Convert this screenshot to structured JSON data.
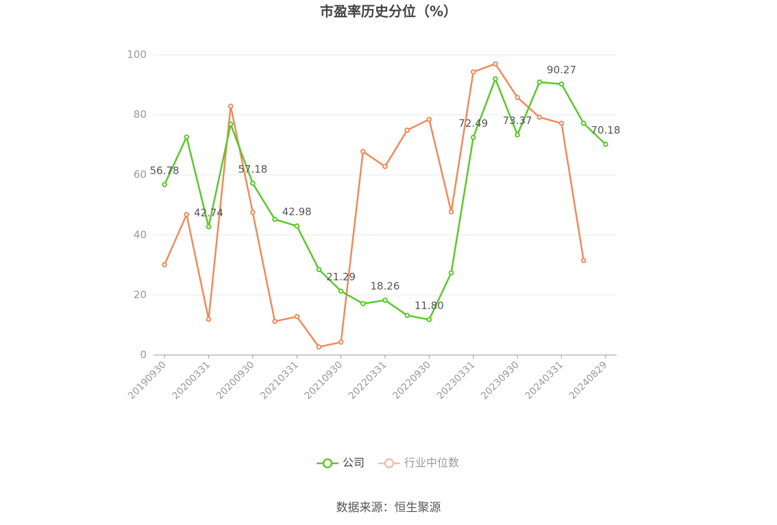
{
  "chart_data": {
    "type": "line",
    "title": "市盈率历史分位（%）",
    "source": "数据来源：恒生聚源",
    "categories": [
      "20190930",
      null,
      "20200331",
      null,
      "20200930",
      null,
      "20210331",
      null,
      "20210930",
      null,
      "20220331",
      null,
      "20220930",
      null,
      "20230331",
      null,
      "20230930",
      null,
      "20240331",
      null,
      "20240829"
    ],
    "series": [
      {
        "name": "公司",
        "color": "#5ac72a",
        "values": [
          56.78,
          72.6,
          42.74,
          76.9,
          57.18,
          45.2,
          42.98,
          28.5,
          21.29,
          17.1,
          18.26,
          13.2,
          11.8,
          27.4,
          72.49,
          92.0,
          73.37,
          90.9,
          90.27,
          77.2,
          70.18
        ],
        "value_labels": [
          "56.78",
          null,
          "42.74",
          null,
          "57.18",
          null,
          "42.98",
          null,
          "21.29",
          null,
          "18.26",
          null,
          "11.80",
          null,
          "72.49",
          null,
          "73.37",
          null,
          "90.27",
          null,
          "70.18"
        ]
      },
      {
        "name": "行业中位数",
        "color": "#f0895a",
        "values": [
          30.1,
          46.8,
          11.9,
          82.9,
          47.5,
          11.2,
          12.8,
          2.7,
          4.3,
          67.8,
          62.8,
          74.9,
          78.5,
          47.7,
          94.3,
          97.0,
          85.8,
          79.2,
          77.2,
          31.5,
          null
        ]
      }
    ],
    "ylim": [
      0,
      100
    ],
    "yticks": [
      0,
      20,
      40,
      60,
      80,
      100
    ],
    "grid": true,
    "legend": "bottom"
  }
}
